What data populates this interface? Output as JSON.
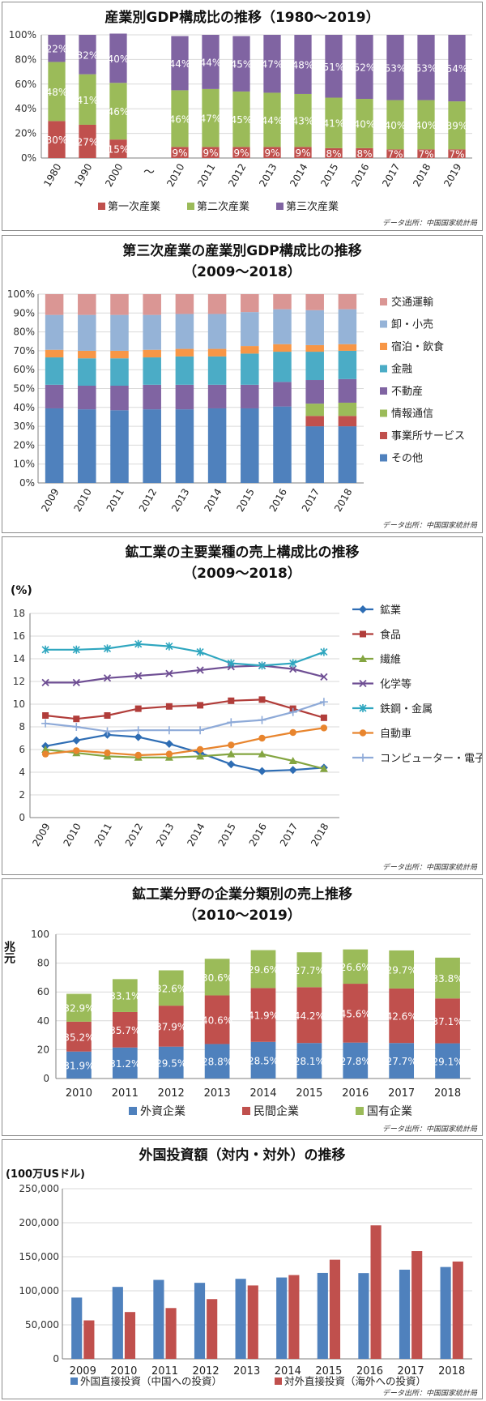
{
  "charts": [
    {
      "type": "bar",
      "stacked": "percent",
      "title": "産業別GDP構成比の推移（1980～2019）",
      "source": "データ出所：中国国家統計局",
      "categories": [
        "1980",
        "1990",
        "2000",
        "～",
        "2010",
        "2011",
        "2012",
        "2013",
        "2014",
        "2015",
        "2016",
        "2017",
        "2018",
        "2019"
      ],
      "yticks": [
        "0%",
        "20%",
        "40%",
        "60%",
        "80%",
        "100%"
      ],
      "ylim": [
        0,
        100
      ],
      "grid": true,
      "legend_position": "bottom",
      "series": [
        {
          "name": "第一次産業",
          "color": "#c0504d",
          "values": [
            30,
            27,
            15,
            null,
            9,
            9,
            9,
            9,
            9,
            8,
            8,
            7,
            7,
            7
          ],
          "labels": [
            "30%",
            "27%",
            "15%",
            "",
            "9%",
            "9%",
            "9%",
            "9%",
            "9%",
            "8%",
            "8%",
            "7%",
            "7%",
            "7%"
          ]
        },
        {
          "name": "第二次産業",
          "color": "#9bbb59",
          "values": [
            48,
            41,
            46,
            null,
            46,
            47,
            45,
            44,
            43,
            41,
            40,
            40,
            40,
            39
          ],
          "labels": [
            "48%",
            "41%",
            "46%",
            "",
            "46%",
            "47%",
            "45%",
            "44%",
            "43%",
            "41%",
            "40%",
            "40%",
            "40%",
            "39%"
          ]
        },
        {
          "name": "第三次産業",
          "color": "#8064a2",
          "values": [
            22,
            32,
            40,
            null,
            44,
            44,
            45,
            47,
            48,
            51,
            52,
            53,
            53,
            54
          ],
          "labels": [
            "22%",
            "32%",
            "40%",
            "",
            "44%",
            "44%",
            "45%",
            "47%",
            "48%",
            "51%",
            "52%",
            "53%",
            "53%",
            "54%"
          ]
        }
      ]
    },
    {
      "type": "bar",
      "stacked": "percent",
      "title": "第三次産業の産業別GDP構成比の推移",
      "subtitle": "（2009～2018）",
      "source": "データ出所：中国国家統計局",
      "categories": [
        "2009",
        "2010",
        "2011",
        "2012",
        "2013",
        "2014",
        "2015",
        "2016",
        "2017",
        "2018"
      ],
      "yticks": [
        "0%",
        "10%",
        "20%",
        "30%",
        "40%",
        "50%",
        "60%",
        "70%",
        "80%",
        "90%",
        "100%"
      ],
      "ylim": [
        0,
        100
      ],
      "grid": true,
      "legend_position": "right",
      "series": [
        {
          "name": "その他",
          "color": "#4f81bd",
          "values": [
            39.5,
            39,
            38.5,
            39,
            39,
            39.5,
            39.5,
            40.5,
            30,
            30
          ]
        },
        {
          "name": "事業所サービス",
          "color": "#c0504d",
          "values": [
            0,
            0,
            0,
            0,
            0,
            0,
            0,
            0,
            5.5,
            5.5
          ]
        },
        {
          "name": "情報通信",
          "color": "#9bbb59",
          "values": [
            0,
            0,
            0,
            0,
            0,
            0,
            0,
            0,
            6.5,
            7
          ]
        },
        {
          "name": "不動産",
          "color": "#8064a2",
          "values": [
            12.5,
            12.5,
            13,
            13,
            13,
            12.5,
            12.5,
            13,
            12.5,
            12.5
          ]
        },
        {
          "name": "金融",
          "color": "#4bacc6",
          "values": [
            14.5,
            14.5,
            14.5,
            14.5,
            15,
            15,
            16.5,
            16,
            15,
            15
          ]
        },
        {
          "name": "宿泊・飲食",
          "color": "#f79646",
          "values": [
            4,
            4,
            4,
            4,
            4,
            4,
            4,
            4,
            3.5,
            3.5
          ]
        },
        {
          "name": "卸・小売",
          "color": "#95b3d7",
          "values": [
            18.5,
            19,
            19,
            18.5,
            18.5,
            18.5,
            18,
            18.5,
            18.5,
            18.5
          ]
        },
        {
          "name": "交通運輸",
          "color": "#da9694",
          "values": [
            11,
            11,
            11,
            11,
            10.5,
            10.5,
            9.5,
            8,
            8.5,
            8
          ]
        }
      ]
    },
    {
      "type": "line",
      "title": "鉱工業の主要業種の売上構成比の推移",
      "subtitle": "（2009～2018）",
      "source": "データ出所：中国国家統計局",
      "ylabel": "(%)",
      "x": [
        "2009",
        "2010",
        "2011",
        "2012",
        "2013",
        "2014",
        "2015",
        "2016",
        "2017",
        "2018"
      ],
      "yticks": [
        "0",
        "2",
        "4",
        "6",
        "8",
        "10",
        "12",
        "14",
        "16",
        "18"
      ],
      "ylim": [
        0,
        18
      ],
      "grid": true,
      "legend_position": "right",
      "series": [
        {
          "name": "鉱業",
          "color": "#2e6db4",
          "marker": "diamond",
          "values": [
            6.3,
            6.8,
            7.3,
            7.1,
            6.5,
            5.7,
            4.7,
            4.1,
            4.2,
            4.4
          ]
        },
        {
          "name": "食品",
          "color": "#b13d3a",
          "marker": "square",
          "values": [
            9.0,
            8.7,
            9.0,
            9.6,
            9.8,
            9.9,
            10.3,
            10.4,
            9.6,
            8.8
          ]
        },
        {
          "name": "繊維",
          "color": "#84a541",
          "marker": "triangle",
          "values": [
            6.0,
            5.7,
            5.4,
            5.3,
            5.3,
            5.4,
            5.6,
            5.6,
            5.0,
            4.3
          ]
        },
        {
          "name": "化学等",
          "color": "#6f4f94",
          "marker": "x",
          "values": [
            11.9,
            11.9,
            12.3,
            12.5,
            12.7,
            13.0,
            13.3,
            13.4,
            13.1,
            12.4
          ]
        },
        {
          "name": "鉄鋼・金属",
          "color": "#2ea6bf",
          "marker": "star",
          "values": [
            14.8,
            14.8,
            14.9,
            15.3,
            15.1,
            14.6,
            13.6,
            13.4,
            13.6,
            14.6
          ]
        },
        {
          "name": "自動車",
          "color": "#e8852e",
          "marker": "circle",
          "values": [
            5.6,
            5.9,
            5.7,
            5.5,
            5.6,
            6.0,
            6.4,
            7.0,
            7.5,
            7.9
          ]
        },
        {
          "name": "コンピューター・電子機器",
          "color": "#8eaad8",
          "marker": "plus",
          "values": [
            8.3,
            8.0,
            7.6,
            7.7,
            7.7,
            7.7,
            8.4,
            8.6,
            9.3,
            10.2
          ]
        }
      ]
    },
    {
      "type": "bar",
      "stacked": "normal",
      "title": "鉱工業分野の企業分類別の売上推移",
      "subtitle": "（2010～2019）",
      "source": "データ出所：中国国家統計局",
      "ylabel": "兆元",
      "categories": [
        "2010",
        "2011",
        "2012",
        "2013",
        "2014",
        "2015",
        "2016",
        "2017",
        "2018"
      ],
      "yticks": [
        "0",
        "20",
        "40",
        "60",
        "80",
        "100"
      ],
      "ylim": [
        0,
        100
      ],
      "grid": true,
      "legend_position": "bottom",
      "series": [
        {
          "name": "外資企業",
          "color": "#4f81bd",
          "values": [
            18.7,
            21.5,
            22.1,
            23.9,
            25.4,
            24.6,
            24.9,
            24.6,
            24.4
          ],
          "labels": [
            "31.9%",
            "31.2%",
            "29.5%",
            "28.8%",
            "28.5%",
            "28.1%",
            "27.8%",
            "27.7%",
            "29.1%"
          ]
        },
        {
          "name": "民間企業",
          "color": "#c0504d",
          "values": [
            20.7,
            24.6,
            28.4,
            33.7,
            37.3,
            38.7,
            40.8,
            37.8,
            31.1
          ],
          "labels": [
            "35.2%",
            "35.7%",
            "37.9%",
            "40.6%",
            "41.9%",
            "44.2%",
            "45.6%",
            "42.6%",
            "37.1%"
          ]
        },
        {
          "name": "国有企業",
          "color": "#9bbb59",
          "values": [
            19.3,
            22.8,
            24.5,
            25.4,
            26.3,
            24.2,
            23.8,
            26.4,
            28.3
          ],
          "labels": [
            "32.9%",
            "33.1%",
            "32.6%",
            "30.6%",
            "29.6%",
            "27.7%",
            "26.6%",
            "29.7%",
            "33.8%"
          ]
        }
      ]
    },
    {
      "type": "bar",
      "title": "外国投資額（対内・対外）の推移",
      "source": "データ出所：中国国家統計局",
      "ylabel": "(100万USドル)",
      "categories": [
        "2009",
        "2010",
        "2011",
        "2012",
        "2013",
        "2014",
        "2015",
        "2016",
        "2017",
        "2018"
      ],
      "yticks": [
        "0",
        "50,000",
        "100,000",
        "150,000",
        "200,000",
        "250,000"
      ],
      "ylim": [
        0,
        250000
      ],
      "grid": true,
      "legend_position": "bottom",
      "series": [
        {
          "name": "外国直接投資（中国への投資）",
          "color": "#4f81bd",
          "values": [
            90033,
            105735,
            116011,
            111716,
            117586,
            119562,
            126267,
            126001,
            131035,
            134966
          ]
        },
        {
          "name": "対外直接投資（海外への投資）",
          "color": "#c0504d",
          "values": [
            56529,
            68811,
            74654,
            87804,
            107844,
            123120,
            145667,
            196149,
            158290,
            143037
          ]
        }
      ]
    }
  ]
}
